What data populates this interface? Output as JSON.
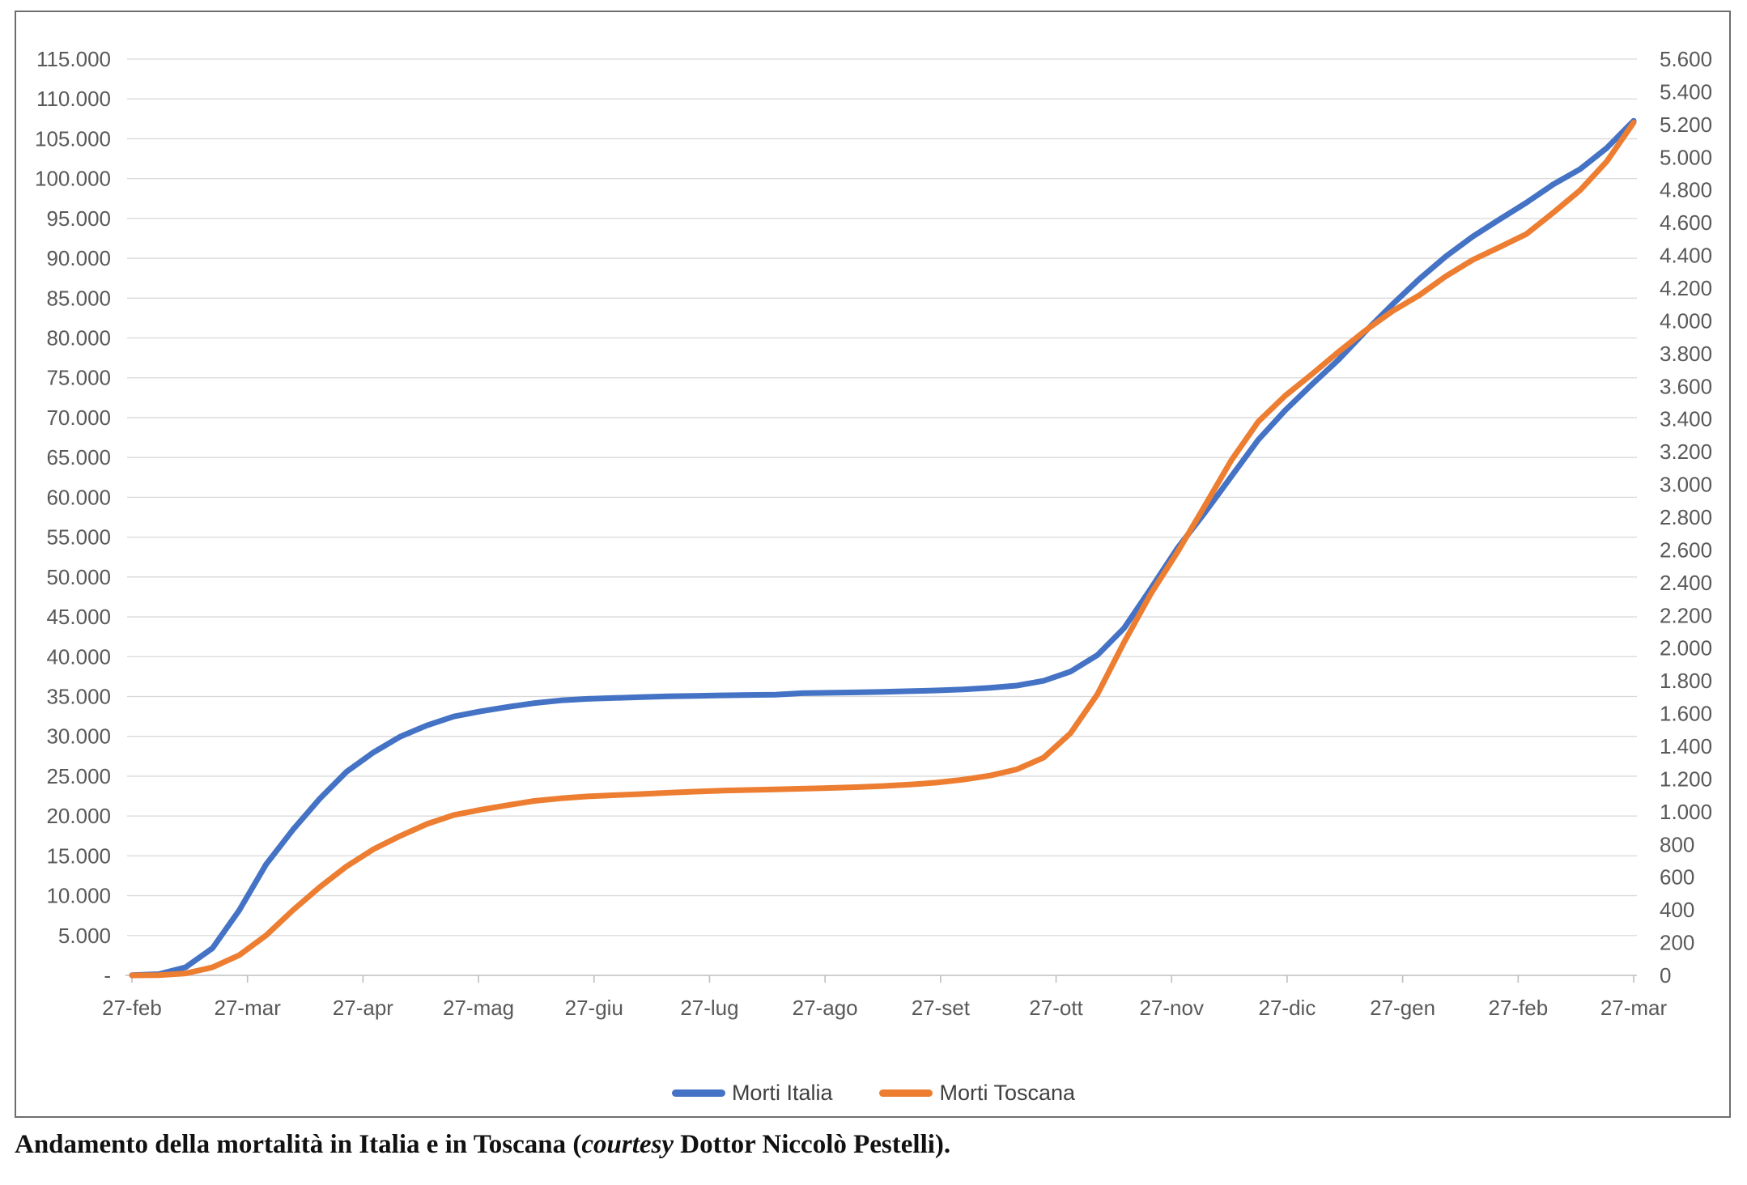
{
  "figure": {
    "legend": [
      {
        "label": "Morti Italia",
        "color": "#4472C4"
      },
      {
        "label": "Morti Toscana",
        "color": "#ED7D31"
      }
    ],
    "caption": {
      "pre": "Andamento della mortalità in Italia e in Toscana (",
      "courtesy": "courtesy",
      "post": " Dottor Niccolò Pestelli)."
    }
  },
  "chart_data": {
    "type": "line",
    "title": "",
    "xlabel": "",
    "ylabel_left": "",
    "ylabel_right": "",
    "grid": "horizontal",
    "legend_position": "bottom",
    "x_tick_labels": [
      "27-feb",
      "27-mar",
      "27-apr",
      "27-mag",
      "27-giu",
      "27-lug",
      "27-ago",
      "27-set",
      "27-ott",
      "27-nov",
      "27-dic",
      "27-gen",
      "27-feb",
      "27-mar"
    ],
    "y_left": {
      "max": 115000,
      "min": 0,
      "step": 5000,
      "labels": [
        "115.000",
        "110.000",
        "105.000",
        "100.000",
        "95.000",
        "90.000",
        "85.000",
        "80.000",
        "75.000",
        "70.000",
        "65.000",
        "60.000",
        "55.000",
        "50.000",
        "45.000",
        "40.000",
        "35.000",
        "30.000",
        "25.000",
        "20.000",
        "15.000",
        "10.000",
        "5.000",
        "-"
      ]
    },
    "y_right": {
      "max": 5600,
      "min": 0,
      "step": 200,
      "labels": [
        "5.600",
        "5.400",
        "5.200",
        "5.000",
        "4.800",
        "4.600",
        "4.400",
        "4.200",
        "4.000",
        "3.800",
        "3.600",
        "3.400",
        "3.200",
        "3.000",
        "2.800",
        "2.600",
        "2.400",
        "2.200",
        "2.000",
        "1.800",
        "1.600",
        "1.400",
        "1.200",
        "1.000",
        "800",
        "600",
        "400",
        "200",
        "0"
      ]
    },
    "series": [
      {
        "name": "Morti Italia",
        "axis": "left",
        "color": "#4472C4",
        "values": [
          17,
          148,
          1016,
          3405,
          8165,
          13915,
          18279,
          22170,
          25549,
          27967,
          29958,
          31368,
          32486,
          33142,
          33689,
          34167,
          34514,
          34708,
          34818,
          34926,
          35017,
          35082,
          35141,
          35190,
          35234,
          35418,
          35463,
          35518,
          35587,
          35668,
          35758,
          35894,
          36083,
          36372,
          36968,
          38122,
          40192,
          43589,
          48569,
          53677,
          58038,
          62626,
          67220,
          70900,
          74159,
          77291,
          80848,
          84202,
          87381,
          90241,
          92729,
          94887,
          96974,
          99271,
          101184,
          103855,
          107256
        ]
      },
      {
        "name": "Morti Toscana",
        "axis": "right",
        "color": "#ED7D31",
        "values": [
          0,
          1,
          12,
          49,
          123,
          244,
          398,
          539,
          666,
          770,
          852,
          925,
          980,
          1012,
          1040,
          1066,
          1082,
          1094,
          1101,
          1108,
          1116,
          1123,
          1129,
          1133,
          1137,
          1141,
          1145,
          1150,
          1157,
          1166,
          1178,
          1196,
          1221,
          1259,
          1331,
          1480,
          1717,
          2036,
          2334,
          2590,
          2868,
          3149,
          3384,
          3542,
          3674,
          3811,
          3942,
          4059,
          4156,
          4273,
          4373,
          4451,
          4531,
          4661,
          4798,
          4975,
          5212
        ]
      }
    ],
    "style": {
      "grid_color": "#D9D9D9",
      "axis_color": "#BFBFBF",
      "tick_text_color": "#595959",
      "line_width": 7
    }
  }
}
